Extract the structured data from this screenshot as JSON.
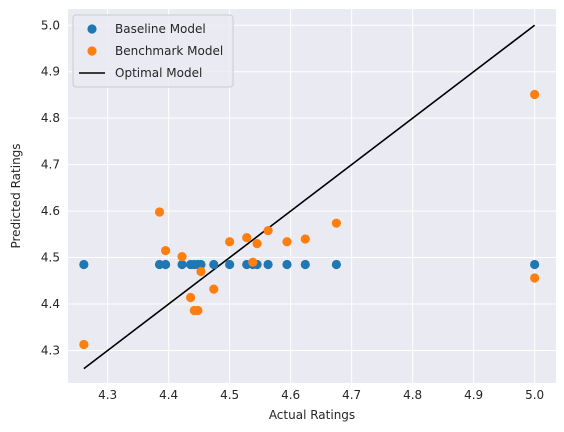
{
  "chart_data": {
    "type": "scatter",
    "xlabel": "Actual Ratings",
    "ylabel": "Predicted Ratings",
    "xlim": [
      4.235,
      5.035
    ],
    "ylim": [
      4.23,
      5.035
    ],
    "xticks": [
      4.3,
      4.4,
      4.5,
      4.6,
      4.7,
      4.8,
      4.9,
      5.0
    ],
    "yticks": [
      4.3,
      4.4,
      4.5,
      4.6,
      4.7,
      4.8,
      4.9,
      5.0
    ],
    "xtick_labels": [
      "4.3",
      "4.4",
      "4.5",
      "4.6",
      "4.7",
      "4.8",
      "4.9",
      "5.0"
    ],
    "ytick_labels": [
      "4.3",
      "4.4",
      "4.5",
      "4.6",
      "4.7",
      "4.8",
      "4.9",
      "5.0"
    ],
    "grid": true,
    "legend_position": "top-left",
    "series": [
      {
        "name": "Baseline Model",
        "kind": "scatter",
        "color": "#1f77b4",
        "points": [
          [
            4.261,
            4.485
          ],
          [
            4.385,
            4.485
          ],
          [
            4.395,
            4.485
          ],
          [
            4.422,
            4.485
          ],
          [
            4.436,
            4.485
          ],
          [
            4.442,
            4.485
          ],
          [
            4.448,
            4.485
          ],
          [
            4.453,
            4.485
          ],
          [
            4.474,
            4.485
          ],
          [
            4.5,
            4.485
          ],
          [
            4.528,
            4.485
          ],
          [
            4.538,
            4.485
          ],
          [
            4.545,
            4.485
          ],
          [
            4.563,
            4.485
          ],
          [
            4.594,
            4.485
          ],
          [
            4.624,
            4.485
          ],
          [
            4.675,
            4.485
          ],
          [
            5.0,
            4.485
          ]
        ]
      },
      {
        "name": "Benchmark Model",
        "kind": "scatter",
        "color": "#ff7f0e",
        "points": [
          [
            4.261,
            4.313
          ],
          [
            4.385,
            4.598
          ],
          [
            4.395,
            4.515
          ],
          [
            4.422,
            4.502
          ],
          [
            4.436,
            4.414
          ],
          [
            4.442,
            4.386
          ],
          [
            4.448,
            4.386
          ],
          [
            4.453,
            4.47
          ],
          [
            4.474,
            4.432
          ],
          [
            4.5,
            4.534
          ],
          [
            4.528,
            4.543
          ],
          [
            4.538,
            4.49
          ],
          [
            4.545,
            4.53
          ],
          [
            4.563,
            4.558
          ],
          [
            4.594,
            4.534
          ],
          [
            4.624,
            4.54
          ],
          [
            4.675,
            4.574
          ],
          [
            5.0,
            4.851
          ],
          [
            5.0,
            4.456
          ]
        ]
      },
      {
        "name": "Optimal Model",
        "kind": "line",
        "color": "#000000",
        "points": [
          [
            4.261,
            4.261
          ],
          [
            5.0,
            5.0
          ]
        ]
      }
    ]
  }
}
